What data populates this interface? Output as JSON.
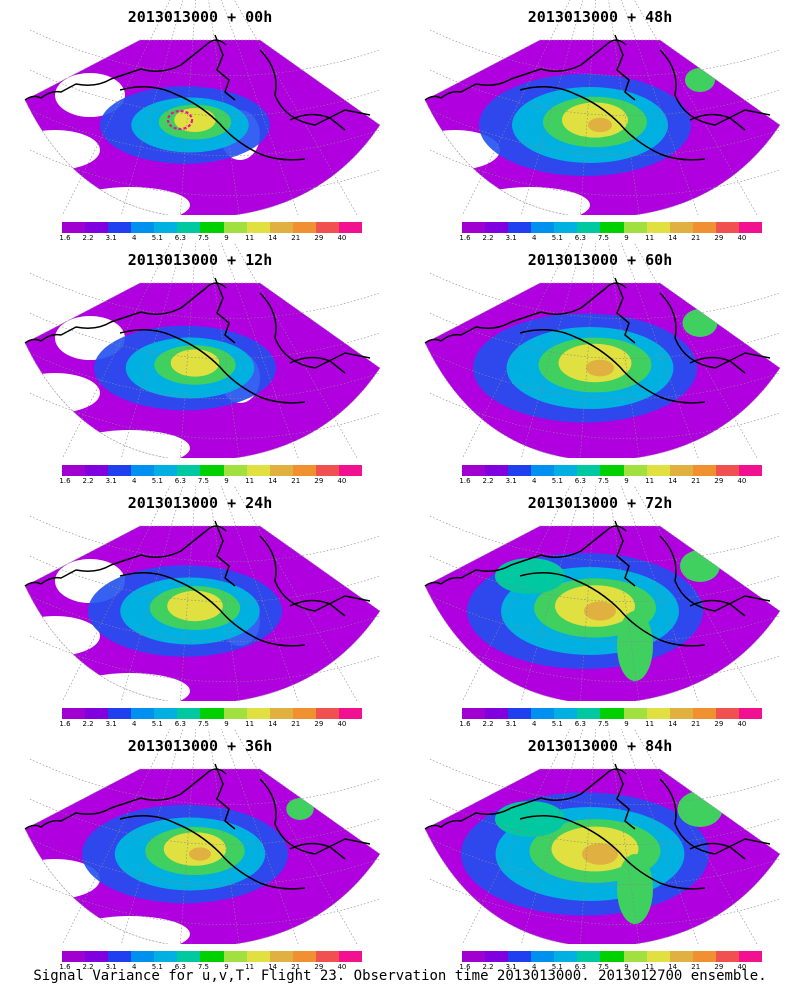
{
  "panels": [
    {
      "title": "2013013000 + 00h",
      "intensity": 0.25,
      "magenta_contour": true
    },
    {
      "title": "2013013000 + 48h",
      "intensity": 0.6,
      "magenta_contour": false
    },
    {
      "title": "2013013000 + 12h",
      "intensity": 0.35,
      "magenta_contour": false
    },
    {
      "title": "2013013000 + 60h",
      "intensity": 0.7,
      "magenta_contour": false
    },
    {
      "title": "2013013000 + 24h",
      "intensity": 0.45,
      "magenta_contour": false
    },
    {
      "title": "2013013000 + 72h",
      "intensity": 0.8,
      "magenta_contour": false
    },
    {
      "title": "2013013000 + 36h",
      "intensity": 0.55,
      "magenta_contour": false
    },
    {
      "title": "2013013000 + 84h",
      "intensity": 0.9,
      "magenta_contour": false
    }
  ],
  "colorbar": {
    "labels": [
      "1.6",
      "2.2",
      "3.1",
      "4",
      "5.1",
      "6.3",
      "7.5",
      "9",
      "11",
      "14",
      "21",
      "29",
      "40"
    ],
    "colors": [
      "#a000d0",
      "#8000e0",
      "#2040f0",
      "#0090f0",
      "#00b0e0",
      "#00c8a0",
      "#00d000",
      "#a0e040",
      "#e0e040",
      "#e0b040",
      "#f09030",
      "#f05050",
      "#f01090"
    ]
  },
  "caption": "Signal Variance for u,v,T. Flight 23. Observation time 2013013000. 2013012700 ensemble."
}
